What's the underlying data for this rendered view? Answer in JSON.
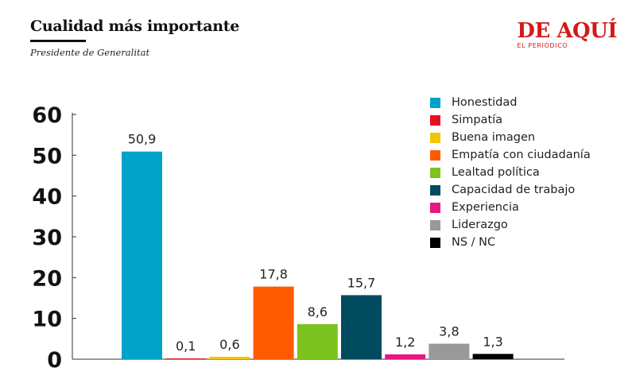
{
  "header": {
    "title": "Cualidad más importante",
    "subtitle": "Presidente de Generalitat"
  },
  "logo": {
    "name": "DE AQUÍ",
    "tagline": "EL PERIÓDICO",
    "color": "#d21a1a"
  },
  "chart_data": {
    "type": "bar",
    "categories": [
      "Honestidad",
      "Simpatía",
      "Buena imagen",
      "Empatía con ciudadanía",
      "Lealtad política",
      "Capacidad de trabajo",
      "Experiencia",
      "Liderazgo",
      "NS / NC"
    ],
    "values": [
      50.9,
      0.1,
      0.6,
      17.8,
      8.6,
      15.7,
      1.2,
      3.8,
      1.3
    ],
    "value_labels": [
      "50,9",
      "0,1",
      "0,6",
      "17,8",
      "8,6",
      "15,7",
      "1,2",
      "3,8",
      "1,3"
    ],
    "colors": [
      "#00a2c8",
      "#e8101d",
      "#f5c400",
      "#ff5a00",
      "#7cc31f",
      "#004b5e",
      "#e8177f",
      "#999999",
      "#000000"
    ],
    "yticks": [
      0,
      10,
      20,
      30,
      40,
      50,
      60
    ],
    "ylim": [
      0,
      60
    ],
    "grid": false,
    "legend_position": "top-right",
    "title": "",
    "xlabel": "",
    "ylabel": ""
  }
}
